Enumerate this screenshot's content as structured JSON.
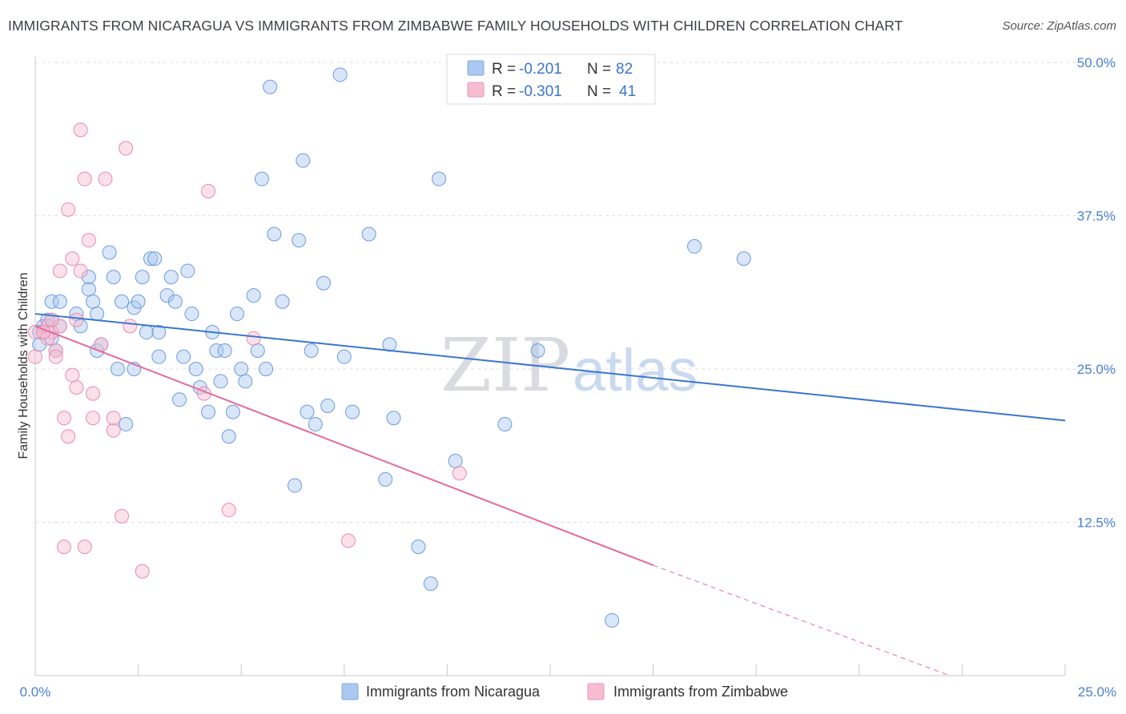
{
  "title": "IMMIGRANTS FROM NICARAGUA VS IMMIGRANTS FROM ZIMBABWE FAMILY HOUSEHOLDS WITH CHILDREN CORRELATION CHART",
  "source": "Source: ZipAtlas.com",
  "watermark": {
    "zip": "ZIP",
    "atlas": "atlas"
  },
  "colors": {
    "nicaragua_fill": "#aac8f0",
    "nicaragua_line": "#3a76cc",
    "zimbabwe_fill": "#f7bcd0",
    "zimbabwe_line": "#e36b9a",
    "tick_label": "#4a7fd0"
  },
  "legend": {
    "rows": [
      {
        "r_label": "R = ",
        "r_value": "-0.201",
        "n_label": "N = ",
        "n_value": "82"
      },
      {
        "r_label": "R = ",
        "r_value": "-0.301",
        "n_label": "N = ",
        "n_value": "41"
      }
    ]
  },
  "chart_data": {
    "type": "scatter",
    "xlabel": "",
    "ylabel": "Family Households with Children",
    "xlim": [
      0,
      25
    ],
    "ylim": [
      0,
      50
    ],
    "x_tick_labels": [
      "0.0%",
      "25.0%"
    ],
    "y_tick_labels": [
      "12.5%",
      "25.0%",
      "37.5%",
      "50.0%"
    ],
    "y_ticks": [
      12.5,
      25,
      37.5,
      50
    ],
    "grid": "horizontal dashed",
    "legend_position": "top-center",
    "series": [
      {
        "name": "Immigrants from Nicaragua",
        "color": "#aac8f0",
        "trend": {
          "x": [
            0.0,
            25.0
          ],
          "y": [
            29.5,
            20.8
          ]
        },
        "points": [
          [
            0.2,
            28.5
          ],
          [
            0.3,
            29.0
          ],
          [
            0.4,
            29.0
          ],
          [
            0.4,
            27.5
          ],
          [
            0.5,
            26.5
          ],
          [
            0.4,
            30.5
          ],
          [
            0.6,
            30.5
          ],
          [
            0.6,
            28.5
          ],
          [
            1.0,
            29.5
          ],
          [
            1.1,
            28.5
          ],
          [
            1.3,
            31.5
          ],
          [
            1.3,
            32.5
          ],
          [
            1.4,
            30.5
          ],
          [
            1.5,
            29.5
          ],
          [
            1.5,
            26.5
          ],
          [
            1.6,
            27.0
          ],
          [
            1.8,
            34.5
          ],
          [
            1.9,
            32.5
          ],
          [
            2.0,
            25.0
          ],
          [
            2.1,
            30.5
          ],
          [
            2.2,
            20.5
          ],
          [
            2.4,
            30.0
          ],
          [
            2.4,
            25.0
          ],
          [
            2.5,
            30.5
          ],
          [
            2.6,
            32.5
          ],
          [
            2.7,
            28.0
          ],
          [
            2.8,
            34.0
          ],
          [
            2.9,
            34.0
          ],
          [
            3.0,
            28.0
          ],
          [
            3.0,
            26.0
          ],
          [
            3.2,
            31.0
          ],
          [
            3.3,
            32.5
          ],
          [
            3.4,
            30.5
          ],
          [
            3.5,
            22.5
          ],
          [
            3.6,
            26.0
          ],
          [
            3.7,
            33.0
          ],
          [
            3.8,
            29.5
          ],
          [
            3.9,
            25.0
          ],
          [
            4.0,
            23.5
          ],
          [
            4.2,
            21.5
          ],
          [
            4.3,
            28.0
          ],
          [
            4.4,
            26.5
          ],
          [
            4.5,
            24.0
          ],
          [
            4.6,
            26.5
          ],
          [
            4.7,
            19.5
          ],
          [
            4.8,
            21.5
          ],
          [
            4.9,
            29.5
          ],
          [
            5.0,
            25.0
          ],
          [
            5.1,
            24.0
          ],
          [
            5.3,
            31.0
          ],
          [
            5.4,
            26.5
          ],
          [
            5.5,
            40.5
          ],
          [
            5.6,
            25.0
          ],
          [
            5.7,
            48.0
          ],
          [
            5.8,
            36.0
          ],
          [
            6.0,
            30.5
          ],
          [
            6.3,
            15.5
          ],
          [
            6.4,
            35.5
          ],
          [
            6.5,
            42.0
          ],
          [
            6.6,
            21.5
          ],
          [
            6.7,
            26.5
          ],
          [
            6.8,
            20.5
          ],
          [
            7.0,
            32.0
          ],
          [
            7.1,
            22.0
          ],
          [
            7.4,
            49.0
          ],
          [
            7.5,
            26.0
          ],
          [
            7.7,
            21.5
          ],
          [
            8.1,
            36.0
          ],
          [
            8.5,
            16.0
          ],
          [
            8.6,
            27.0
          ],
          [
            8.7,
            21.0
          ],
          [
            9.3,
            10.5
          ],
          [
            9.6,
            7.5
          ],
          [
            9.8,
            40.5
          ],
          [
            10.2,
            17.5
          ],
          [
            11.4,
            20.5
          ],
          [
            12.2,
            26.5
          ],
          [
            14.0,
            4.5
          ],
          [
            16.0,
            35.0
          ],
          [
            17.2,
            34.0
          ],
          [
            0.1,
            28.0
          ],
          [
            0.1,
            27.0
          ]
        ]
      },
      {
        "name": "Immigrants from Zimbabwe",
        "color": "#f7bcd0",
        "trend": {
          "x": [
            0.0,
            15.0
          ],
          "y": [
            28.5,
            9.0
          ]
        },
        "trend_dashed": {
          "x": [
            15.0,
            22.2
          ],
          "y": [
            9.0,
            -0.8
          ]
        },
        "points": [
          [
            0.0,
            26.0
          ],
          [
            0.2,
            28.0
          ],
          [
            0.3,
            28.5
          ],
          [
            0.4,
            28.0
          ],
          [
            0.5,
            26.5
          ],
          [
            0.5,
            26.0
          ],
          [
            0.6,
            33.0
          ],
          [
            0.7,
            10.5
          ],
          [
            0.7,
            21.0
          ],
          [
            0.8,
            19.5
          ],
          [
            0.8,
            38.0
          ],
          [
            0.9,
            24.5
          ],
          [
            0.9,
            34.0
          ],
          [
            1.0,
            29.0
          ],
          [
            1.0,
            23.5
          ],
          [
            1.1,
            33.0
          ],
          [
            1.1,
            44.5
          ],
          [
            1.2,
            10.5
          ],
          [
            1.2,
            40.5
          ],
          [
            1.3,
            35.5
          ],
          [
            1.4,
            23.0
          ],
          [
            1.4,
            21.0
          ],
          [
            1.6,
            27.0
          ],
          [
            1.7,
            40.5
          ],
          [
            1.9,
            20.0
          ],
          [
            1.9,
            21.0
          ],
          [
            2.1,
            13.0
          ],
          [
            2.2,
            43.0
          ],
          [
            2.3,
            28.5
          ],
          [
            2.6,
            8.5
          ],
          [
            4.1,
            23.0
          ],
          [
            4.2,
            39.5
          ],
          [
            4.7,
            13.5
          ],
          [
            5.3,
            27.5
          ],
          [
            7.6,
            11.0
          ],
          [
            10.3,
            16.5
          ],
          [
            0.0,
            28.0
          ],
          [
            0.3,
            27.5
          ],
          [
            0.6,
            28.5
          ],
          [
            0.2,
            28.0
          ],
          [
            0.4,
            29.0
          ]
        ]
      }
    ]
  },
  "bottom_legend": [
    {
      "label": "Immigrants from Nicaragua"
    },
    {
      "label": "Immigrants from Zimbabwe"
    }
  ]
}
